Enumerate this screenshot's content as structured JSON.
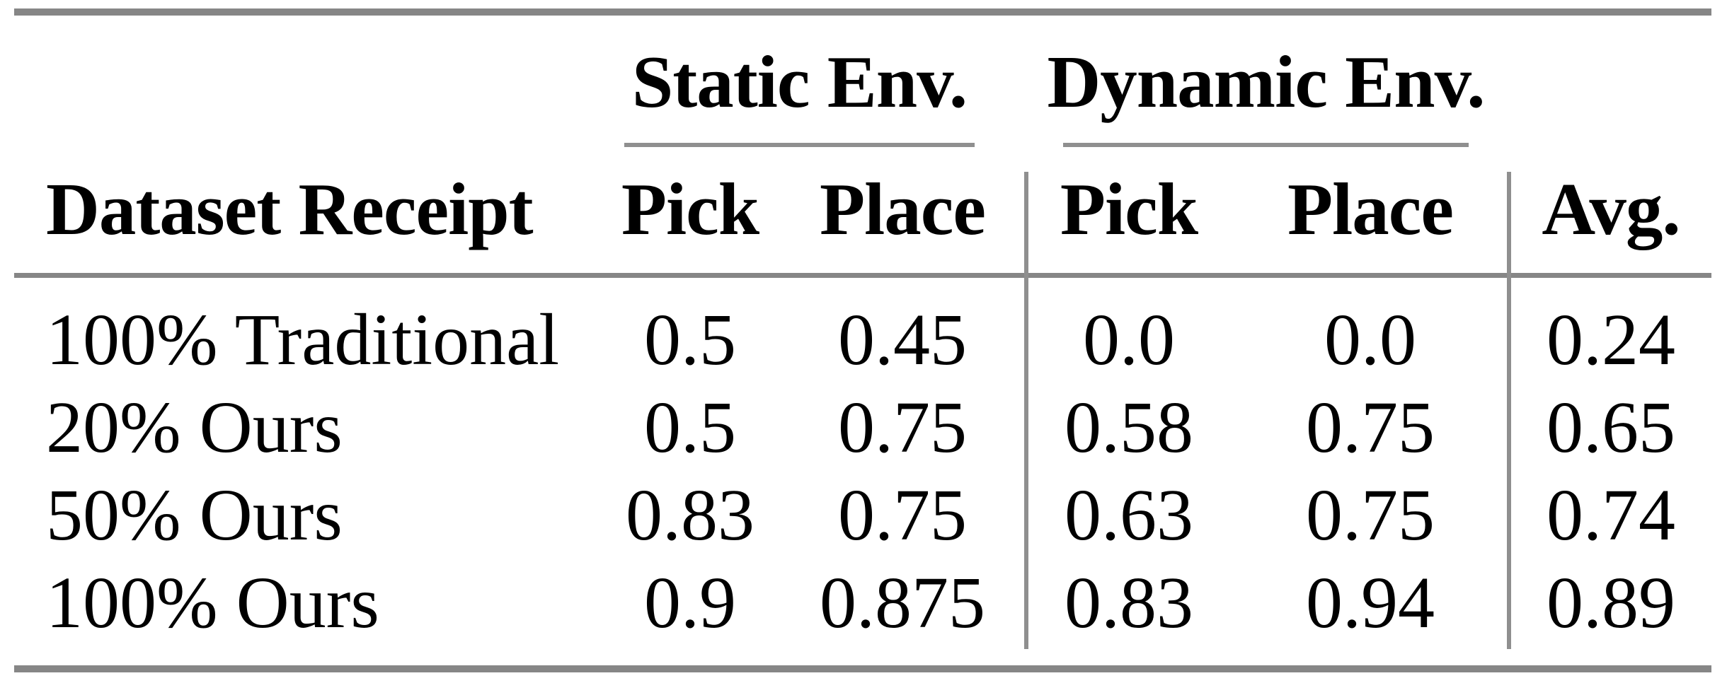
{
  "meta": {
    "background_color": "#ffffff",
    "rule_color": "#868686",
    "text_color": "#000000"
  },
  "table": {
    "corner_header": "Dataset Receipt",
    "groups": [
      {
        "label": "Static Env.",
        "columns": [
          "Pick",
          "Place"
        ]
      },
      {
        "label": "Dynamic Env.",
        "columns": [
          "Pick",
          "Place"
        ]
      }
    ],
    "avg_header": "Avg.",
    "rows": [
      {
        "label": "100% Traditional",
        "cells": [
          "0.5",
          "0.45",
          "0.0",
          "0.0",
          "0.24"
        ]
      },
      {
        "label": "20% Ours",
        "cells": [
          "0.5",
          "0.75",
          "0.58",
          "0.75",
          "0.65"
        ]
      },
      {
        "label": "50% Ours",
        "cells": [
          "0.83",
          "0.75",
          "0.63",
          "0.75",
          "0.74"
        ]
      },
      {
        "label": "100% Ours",
        "cells": [
          "0.9",
          "0.875",
          "0.83",
          "0.94",
          "0.89"
        ]
      }
    ]
  },
  "chart_data": {
    "type": "table",
    "title": "",
    "column_groups": [
      "",
      "Static Env.",
      "Static Env.",
      "Dynamic Env.",
      "Dynamic Env.",
      ""
    ],
    "columns": [
      "Dataset Receipt",
      "Pick",
      "Place",
      "Pick",
      "Place",
      "Avg."
    ],
    "rows": [
      [
        "100% Traditional",
        0.5,
        0.45,
        0.0,
        0.0,
        0.24
      ],
      [
        "20% Ours",
        0.5,
        0.75,
        0.58,
        0.75,
        0.65
      ],
      [
        "50% Ours",
        0.83,
        0.75,
        0.63,
        0.75,
        0.74
      ],
      [
        "100% Ours",
        0.9,
        0.875,
        0.83,
        0.94,
        0.89
      ]
    ]
  }
}
